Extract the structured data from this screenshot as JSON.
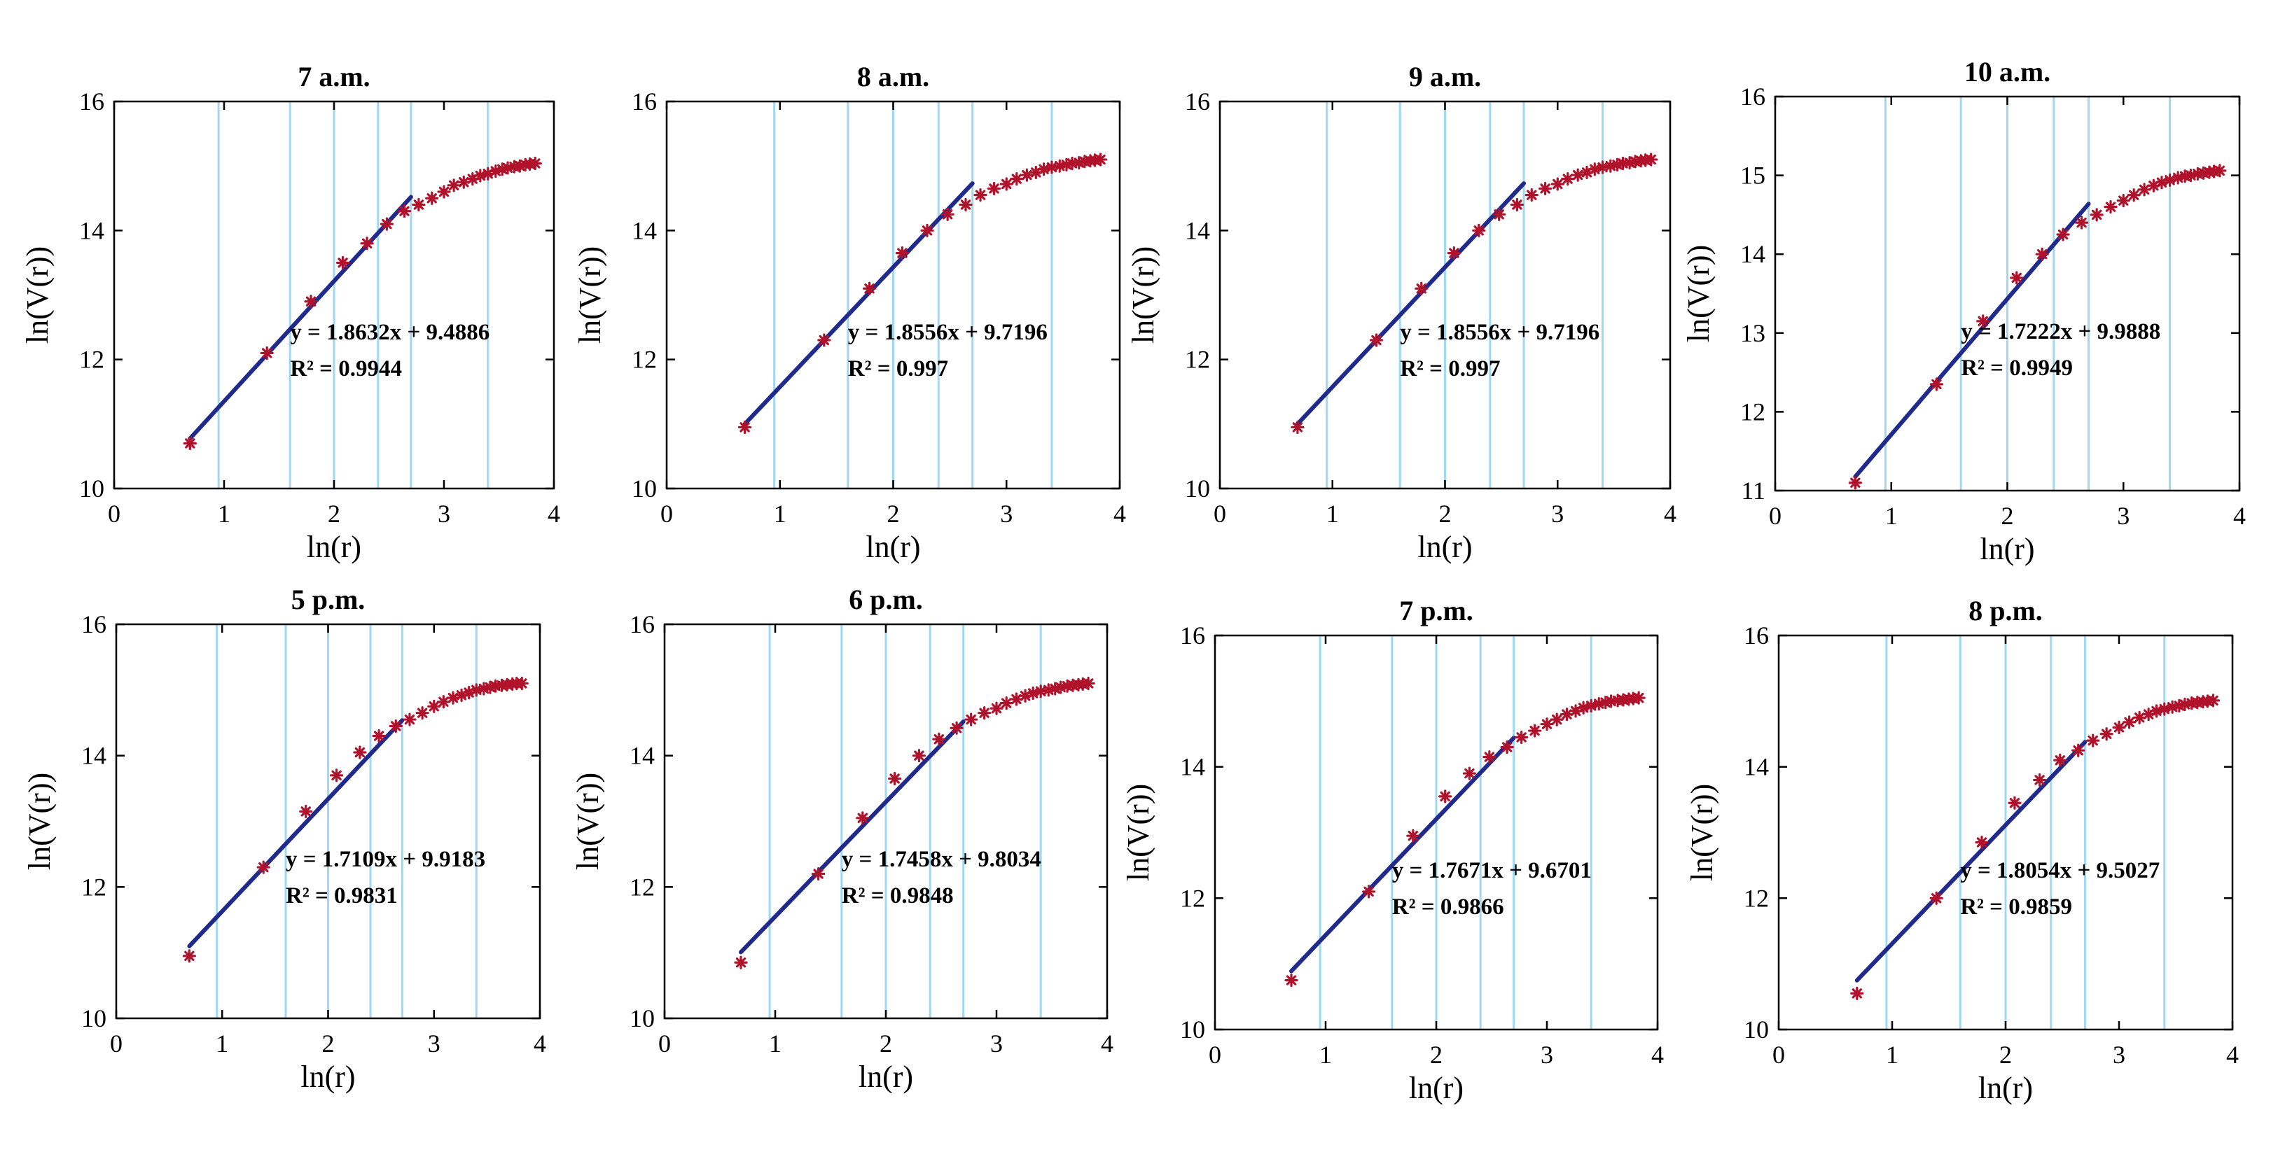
{
  "chart_data": [
    {
      "type": "scatter",
      "title": "7 a.m.",
      "xlabel": "ln(r)",
      "ylabel": "ln(V(r))",
      "xlim": [
        0,
        4
      ],
      "ylim": [
        10,
        16
      ],
      "xticks": [
        "0",
        "1",
        "2",
        "3",
        "4"
      ],
      "yticks": [
        "10",
        "12",
        "14",
        "16"
      ],
      "grid_x": [
        0.95,
        1.6,
        2.0,
        2.4,
        2.7,
        3.4
      ],
      "points": [
        [
          0.69,
          10.7
        ],
        [
          1.39,
          12.1
        ],
        [
          1.79,
          12.9
        ],
        [
          2.08,
          13.5
        ],
        [
          2.3,
          13.8
        ],
        [
          2.48,
          14.1
        ],
        [
          2.64,
          14.3
        ],
        [
          2.77,
          14.4
        ],
        [
          2.89,
          14.5
        ],
        [
          3.0,
          14.6
        ],
        [
          3.09,
          14.7
        ],
        [
          3.18,
          14.75
        ],
        [
          3.26,
          14.8
        ],
        [
          3.33,
          14.85
        ],
        [
          3.4,
          14.88
        ],
        [
          3.47,
          14.92
        ],
        [
          3.53,
          14.95
        ],
        [
          3.58,
          14.97
        ],
        [
          3.64,
          14.99
        ],
        [
          3.69,
          15.0
        ],
        [
          3.74,
          15.02
        ],
        [
          3.78,
          15.03
        ],
        [
          3.83,
          15.04
        ]
      ],
      "fit_line": {
        "slope": 1.8632,
        "intercept": 9.4886,
        "x_start": 0.69,
        "x_end": 2.7
      },
      "equation": "y = 1.8632x + 9.4886",
      "r2": "R² = 0.9944"
    },
    {
      "type": "scatter",
      "title": "8 a.m.",
      "xlabel": "ln(r)",
      "ylabel": "ln(V(r))",
      "xlim": [
        0,
        4
      ],
      "ylim": [
        10,
        16
      ],
      "xticks": [
        "0",
        "1",
        "2",
        "3",
        "4"
      ],
      "yticks": [
        "10",
        "12",
        "14",
        "16"
      ],
      "grid_x": [
        0.95,
        1.6,
        2.0,
        2.4,
        2.7,
        3.4
      ],
      "points": [
        [
          0.69,
          10.95
        ],
        [
          1.39,
          12.3
        ],
        [
          1.79,
          13.1
        ],
        [
          2.08,
          13.65
        ],
        [
          2.3,
          14.0
        ],
        [
          2.48,
          14.25
        ],
        [
          2.64,
          14.4
        ],
        [
          2.77,
          14.55
        ],
        [
          2.89,
          14.65
        ],
        [
          3.0,
          14.72
        ],
        [
          3.09,
          14.8
        ],
        [
          3.18,
          14.86
        ],
        [
          3.26,
          14.9
        ],
        [
          3.33,
          14.95
        ],
        [
          3.4,
          14.98
        ],
        [
          3.47,
          15.0
        ],
        [
          3.53,
          15.02
        ],
        [
          3.58,
          15.04
        ],
        [
          3.64,
          15.05
        ],
        [
          3.69,
          15.07
        ],
        [
          3.74,
          15.08
        ],
        [
          3.78,
          15.09
        ],
        [
          3.83,
          15.1
        ]
      ],
      "fit_line": {
        "slope": 1.8556,
        "intercept": 9.7196,
        "x_start": 0.69,
        "x_end": 2.7
      },
      "equation": "y = 1.8556x + 9.7196",
      "r2": "R² = 0.997"
    },
    {
      "type": "scatter",
      "title": "9 a.m.",
      "xlabel": "ln(r)",
      "ylabel": "ln(V(r))",
      "xlim": [
        0,
        4
      ],
      "ylim": [
        10,
        16
      ],
      "xticks": [
        "0",
        "1",
        "2",
        "3",
        "4"
      ],
      "yticks": [
        "10",
        "12",
        "14",
        "16"
      ],
      "grid_x": [
        0.95,
        1.6,
        2.0,
        2.4,
        2.7,
        3.4
      ],
      "points": [
        [
          0.69,
          10.95
        ],
        [
          1.39,
          12.3
        ],
        [
          1.79,
          13.1
        ],
        [
          2.08,
          13.65
        ],
        [
          2.3,
          14.0
        ],
        [
          2.48,
          14.25
        ],
        [
          2.64,
          14.4
        ],
        [
          2.77,
          14.55
        ],
        [
          2.89,
          14.65
        ],
        [
          3.0,
          14.72
        ],
        [
          3.09,
          14.8
        ],
        [
          3.18,
          14.86
        ],
        [
          3.26,
          14.9
        ],
        [
          3.33,
          14.95
        ],
        [
          3.4,
          14.98
        ],
        [
          3.47,
          15.0
        ],
        [
          3.53,
          15.02
        ],
        [
          3.58,
          15.04
        ],
        [
          3.64,
          15.05
        ],
        [
          3.69,
          15.07
        ],
        [
          3.74,
          15.08
        ],
        [
          3.78,
          15.09
        ],
        [
          3.83,
          15.1
        ]
      ],
      "fit_line": {
        "slope": 1.8556,
        "intercept": 9.7196,
        "x_start": 0.69,
        "x_end": 2.7
      },
      "equation": "y = 1.8556x + 9.7196",
      "r2": "R² = 0.997"
    },
    {
      "type": "scatter",
      "title": "10 a.m.",
      "xlabel": "ln(r)",
      "ylabel": "ln(V(r))",
      "xlim": [
        0,
        4
      ],
      "ylim": [
        11,
        16
      ],
      "xticks": [
        "0",
        "1",
        "2",
        "3",
        "4"
      ],
      "yticks": [
        "11",
        "12",
        "13",
        "14",
        "15",
        "16"
      ],
      "grid_x": [
        0.95,
        1.6,
        2.0,
        2.4,
        2.7,
        3.4
      ],
      "points": [
        [
          0.69,
          11.1
        ],
        [
          1.39,
          12.35
        ],
        [
          1.79,
          13.15
        ],
        [
          2.08,
          13.7
        ],
        [
          2.3,
          14.0
        ],
        [
          2.48,
          14.25
        ],
        [
          2.64,
          14.4
        ],
        [
          2.77,
          14.5
        ],
        [
          2.89,
          14.6
        ],
        [
          3.0,
          14.68
        ],
        [
          3.09,
          14.75
        ],
        [
          3.18,
          14.82
        ],
        [
          3.26,
          14.87
        ],
        [
          3.33,
          14.91
        ],
        [
          3.4,
          14.94
        ],
        [
          3.47,
          14.97
        ],
        [
          3.53,
          14.99
        ],
        [
          3.58,
          15.0
        ],
        [
          3.64,
          15.02
        ],
        [
          3.69,
          15.03
        ],
        [
          3.74,
          15.04
        ],
        [
          3.78,
          15.05
        ],
        [
          3.83,
          15.06
        ]
      ],
      "fit_line": {
        "slope": 1.7222,
        "intercept": 9.9888,
        "x_start": 0.69,
        "x_end": 2.7
      },
      "equation": "y = 1.7222x + 9.9888",
      "r2": "R² = 0.9949"
    },
    {
      "type": "scatter",
      "title": "5 p.m.",
      "xlabel": "ln(r)",
      "ylabel": "ln(V(r))",
      "xlim": [
        0,
        4
      ],
      "ylim": [
        10,
        16
      ],
      "xticks": [
        "0",
        "1",
        "2",
        "3",
        "4"
      ],
      "yticks": [
        "10",
        "12",
        "14",
        "16"
      ],
      "grid_x": [
        0.95,
        1.6,
        2.0,
        2.4,
        2.7,
        3.4
      ],
      "points": [
        [
          0.69,
          10.95
        ],
        [
          1.39,
          12.3
        ],
        [
          1.79,
          13.15
        ],
        [
          2.08,
          13.7
        ],
        [
          2.3,
          14.05
        ],
        [
          2.48,
          14.3
        ],
        [
          2.64,
          14.45
        ],
        [
          2.77,
          14.55
        ],
        [
          2.89,
          14.65
        ],
        [
          3.0,
          14.75
        ],
        [
          3.09,
          14.82
        ],
        [
          3.18,
          14.88
        ],
        [
          3.26,
          14.92
        ],
        [
          3.33,
          14.96
        ],
        [
          3.4,
          15.0
        ],
        [
          3.47,
          15.02
        ],
        [
          3.53,
          15.04
        ],
        [
          3.58,
          15.06
        ],
        [
          3.64,
          15.07
        ],
        [
          3.69,
          15.08
        ],
        [
          3.74,
          15.09
        ],
        [
          3.78,
          15.1
        ],
        [
          3.83,
          15.1
        ]
      ],
      "fit_line": {
        "slope": 1.7109,
        "intercept": 9.9183,
        "x_start": 0.69,
        "x_end": 2.7
      },
      "equation": "y = 1.7109x + 9.9183",
      "r2": "R² = 0.9831"
    },
    {
      "type": "scatter",
      "title": "6 p.m.",
      "xlabel": "ln(r)",
      "ylabel": "ln(V(r))",
      "xlim": [
        0,
        4
      ],
      "ylim": [
        10,
        16
      ],
      "xticks": [
        "0",
        "1",
        "2",
        "3",
        "4"
      ],
      "yticks": [
        "10",
        "12",
        "14",
        "16"
      ],
      "grid_x": [
        0.95,
        1.6,
        2.0,
        2.4,
        2.7,
        3.4
      ],
      "points": [
        [
          0.69,
          10.85
        ],
        [
          1.39,
          12.2
        ],
        [
          1.79,
          13.05
        ],
        [
          2.08,
          13.65
        ],
        [
          2.3,
          14.0
        ],
        [
          2.48,
          14.25
        ],
        [
          2.64,
          14.42
        ],
        [
          2.77,
          14.55
        ],
        [
          2.89,
          14.65
        ],
        [
          3.0,
          14.72
        ],
        [
          3.09,
          14.8
        ],
        [
          3.18,
          14.86
        ],
        [
          3.26,
          14.91
        ],
        [
          3.33,
          14.95
        ],
        [
          3.4,
          14.98
        ],
        [
          3.47,
          15.0
        ],
        [
          3.53,
          15.02
        ],
        [
          3.58,
          15.04
        ],
        [
          3.64,
          15.06
        ],
        [
          3.69,
          15.07
        ],
        [
          3.74,
          15.08
        ],
        [
          3.78,
          15.09
        ],
        [
          3.83,
          15.1
        ]
      ],
      "fit_line": {
        "slope": 1.7458,
        "intercept": 9.8034,
        "x_start": 0.69,
        "x_end": 2.7
      },
      "equation": "y = 1.7458x + 9.8034",
      "r2": "R² = 0.9848"
    },
    {
      "type": "scatter",
      "title": "7 p.m.",
      "xlabel": "ln(r)",
      "ylabel": "ln(V(r))",
      "xlim": [
        0,
        4
      ],
      "ylim": [
        10,
        16
      ],
      "xticks": [
        "0",
        "1",
        "2",
        "3",
        "4"
      ],
      "yticks": [
        "10",
        "12",
        "14",
        "16"
      ],
      "grid_x": [
        0.95,
        1.6,
        2.0,
        2.4,
        2.7,
        3.4
      ],
      "points": [
        [
          0.69,
          10.75
        ],
        [
          1.39,
          12.1
        ],
        [
          1.79,
          12.95
        ],
        [
          2.08,
          13.55
        ],
        [
          2.3,
          13.9
        ],
        [
          2.48,
          14.15
        ],
        [
          2.64,
          14.3
        ],
        [
          2.77,
          14.45
        ],
        [
          2.89,
          14.55
        ],
        [
          3.0,
          14.65
        ],
        [
          3.09,
          14.72
        ],
        [
          3.18,
          14.8
        ],
        [
          3.26,
          14.85
        ],
        [
          3.33,
          14.9
        ],
        [
          3.4,
          14.93
        ],
        [
          3.47,
          14.96
        ],
        [
          3.53,
          14.98
        ],
        [
          3.58,
          15.0
        ],
        [
          3.64,
          15.01
        ],
        [
          3.69,
          15.02
        ],
        [
          3.74,
          15.03
        ],
        [
          3.78,
          15.04
        ],
        [
          3.83,
          15.05
        ]
      ],
      "fit_line": {
        "slope": 1.7671,
        "intercept": 9.6701,
        "x_start": 0.69,
        "x_end": 2.7
      },
      "equation": "y = 1.7671x + 9.6701",
      "r2": "R² = 0.9866"
    },
    {
      "type": "scatter",
      "title": "8 p.m.",
      "xlabel": "ln(r)",
      "ylabel": "ln(V(r))",
      "xlim": [
        0,
        4
      ],
      "ylim": [
        10,
        16
      ],
      "xticks": [
        "0",
        "1",
        "2",
        "3",
        "4"
      ],
      "yticks": [
        "10",
        "12",
        "14",
        "16"
      ],
      "grid_x": [
        0.95,
        1.6,
        2.0,
        2.4,
        2.7,
        3.4
      ],
      "points": [
        [
          0.69,
          10.55
        ],
        [
          1.39,
          12.0
        ],
        [
          1.79,
          12.85
        ],
        [
          2.08,
          13.45
        ],
        [
          2.3,
          13.8
        ],
        [
          2.48,
          14.1
        ],
        [
          2.64,
          14.25
        ],
        [
          2.77,
          14.4
        ],
        [
          2.89,
          14.5
        ],
        [
          3.0,
          14.6
        ],
        [
          3.09,
          14.68
        ],
        [
          3.18,
          14.75
        ],
        [
          3.26,
          14.8
        ],
        [
          3.33,
          14.85
        ],
        [
          3.4,
          14.88
        ],
        [
          3.47,
          14.91
        ],
        [
          3.53,
          14.93
        ],
        [
          3.58,
          14.95
        ],
        [
          3.64,
          14.97
        ],
        [
          3.69,
          14.98
        ],
        [
          3.74,
          14.99
        ],
        [
          3.78,
          15.0
        ],
        [
          3.83,
          15.01
        ]
      ],
      "fit_line": {
        "slope": 1.8054,
        "intercept": 9.5027,
        "x_start": 0.69,
        "x_end": 2.7
      },
      "equation": "y = 1.8054x + 9.5027",
      "r2": "R² = 0.9859"
    }
  ]
}
